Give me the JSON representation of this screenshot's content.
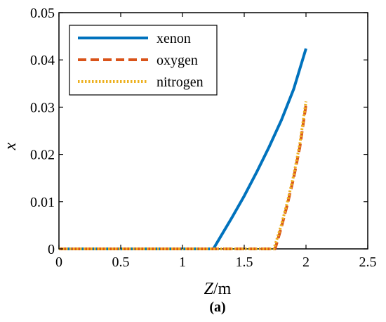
{
  "chart_data": {
    "type": "line",
    "xlabel_italic": "Z",
    "xlabel_unit": "/m",
    "ylabel": "x",
    "xlim": [
      0,
      2.5
    ],
    "ylim": [
      0,
      0.05
    ],
    "xticks": [
      "0",
      "0.5",
      "1",
      "1.5",
      "2",
      "2.5"
    ],
    "yticks": [
      "0",
      "0.01",
      "0.02",
      "0.03",
      "0.04",
      "0.05"
    ],
    "grid": false,
    "legend_position": "top-left",
    "caption": "(a)",
    "series": [
      {
        "name": "xenon",
        "color": "#0072BD",
        "style": "solid",
        "x": [
          0,
          0.5,
          1.0,
          1.25,
          1.3,
          1.4,
          1.5,
          1.6,
          1.7,
          1.8,
          1.9,
          2.0
        ],
        "y": [
          0,
          0,
          0,
          0,
          0.0022,
          0.0066,
          0.0112,
          0.0162,
          0.0215,
          0.0272,
          0.0338,
          0.0424
        ]
      },
      {
        "name": "oxygen",
        "color": "#D95319",
        "style": "dashed",
        "x": [
          0,
          0.5,
          1.0,
          1.5,
          1.75,
          1.8,
          1.85,
          1.9,
          1.95,
          2.0
        ],
        "y": [
          0,
          0,
          0,
          0,
          0,
          0.0045,
          0.0095,
          0.015,
          0.0215,
          0.0305
        ]
      },
      {
        "name": "nitrogen",
        "color": "#EDB120",
        "style": "dotted",
        "x": [
          0,
          0.5,
          1.0,
          1.5,
          1.74,
          1.8,
          1.85,
          1.9,
          1.95,
          2.0
        ],
        "y": [
          0,
          0,
          0,
          0,
          0,
          0.005,
          0.01,
          0.0155,
          0.0222,
          0.0312
        ]
      }
    ]
  }
}
